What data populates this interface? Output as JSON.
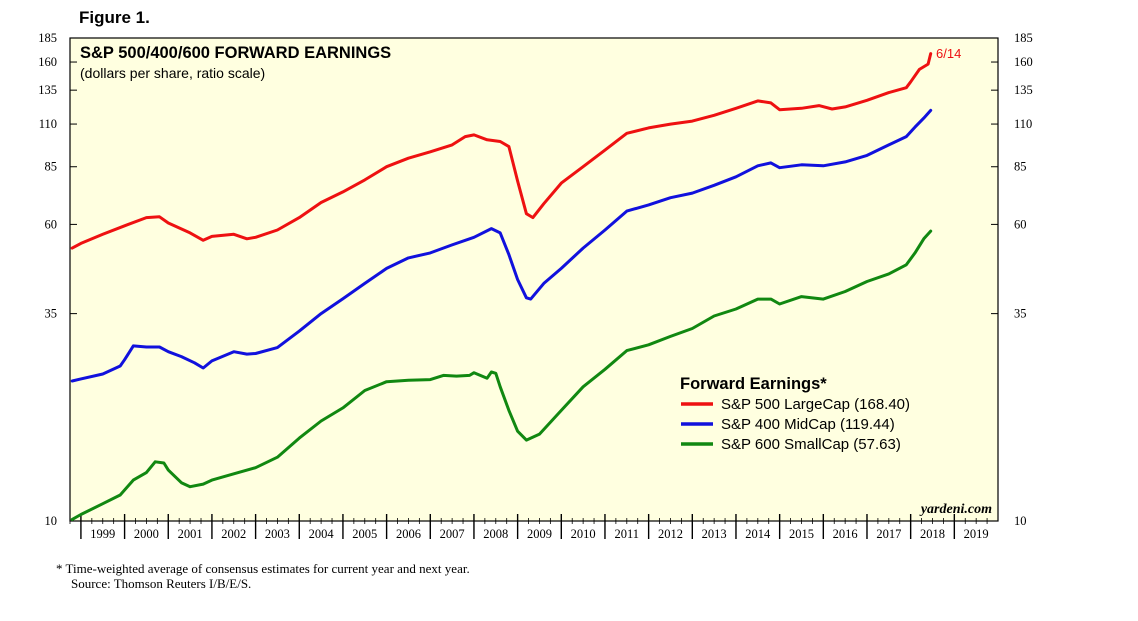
{
  "figure_label": "Figure 1.",
  "chart_data": {
    "type": "line",
    "title": "S&P 500/400/600 FORWARD EARNINGS",
    "subtitle": "(dollars per share, ratio scale)",
    "y_scale": "log",
    "ylim": [
      10,
      185
    ],
    "yticks": [
      10,
      35,
      60,
      85,
      110,
      135,
      160,
      185
    ],
    "xlim": [
      1998.75,
      2020.0
    ],
    "x_year_labels": [
      "1999",
      "2000",
      "2001",
      "2002",
      "2003",
      "2004",
      "2005",
      "2006",
      "2007",
      "2008",
      "2009",
      "2010",
      "2011",
      "2012",
      "2013",
      "2014",
      "2015",
      "2016",
      "2017",
      "2018",
      "2019"
    ],
    "grid": false,
    "legend": {
      "title": "Forward Earnings*",
      "placement": "center-right",
      "entries": [
        "S&P 500 LargeCap (168.40)",
        "S&P 400 MidCap (119.44)",
        "S&P 600 SmallCap (57.63)"
      ]
    },
    "end_annotation": "6/14",
    "watermark": "yardeni.com",
    "series": [
      {
        "name": "S&P 500 LargeCap",
        "color": "#ee1111",
        "points": [
          [
            1998.8,
            52
          ],
          [
            1999.0,
            53.5
          ],
          [
            1999.5,
            56.5
          ],
          [
            2000.0,
            59.5
          ],
          [
            2000.5,
            62.5
          ],
          [
            2000.8,
            62.8
          ],
          [
            2001.0,
            60.5
          ],
          [
            2001.5,
            57
          ],
          [
            2001.8,
            54.5
          ],
          [
            2002.0,
            55.8
          ],
          [
            2002.5,
            56.5
          ],
          [
            2002.8,
            55
          ],
          [
            2003.0,
            55.5
          ],
          [
            2003.5,
            58
          ],
          [
            2004.0,
            62.5
          ],
          [
            2004.5,
            68.5
          ],
          [
            2005.0,
            73
          ],
          [
            2005.5,
            78.5
          ],
          [
            2006.0,
            85
          ],
          [
            2006.5,
            89.5
          ],
          [
            2007.0,
            93
          ],
          [
            2007.5,
            97
          ],
          [
            2007.8,
            102
          ],
          [
            2008.0,
            103
          ],
          [
            2008.3,
            100
          ],
          [
            2008.6,
            99
          ],
          [
            2008.8,
            96
          ],
          [
            2009.0,
            78
          ],
          [
            2009.2,
            64
          ],
          [
            2009.35,
            62.5
          ],
          [
            2009.6,
            68
          ],
          [
            2010.0,
            77
          ],
          [
            2010.5,
            85
          ],
          [
            2011.0,
            94
          ],
          [
            2011.5,
            104
          ],
          [
            2012.0,
            107.5
          ],
          [
            2012.5,
            110
          ],
          [
            2013.0,
            112
          ],
          [
            2013.5,
            116
          ],
          [
            2014.0,
            121
          ],
          [
            2014.5,
            126.5
          ],
          [
            2014.8,
            125
          ],
          [
            2015.0,
            120
          ],
          [
            2015.5,
            121
          ],
          [
            2015.9,
            123
          ],
          [
            2016.2,
            120.5
          ],
          [
            2016.5,
            122
          ],
          [
            2017.0,
            127
          ],
          [
            2017.5,
            133
          ],
          [
            2017.9,
            137
          ],
          [
            2018.0,
            142
          ],
          [
            2018.2,
            153
          ],
          [
            2018.4,
            158
          ],
          [
            2018.46,
            168.4
          ]
        ]
      },
      {
        "name": "S&P 400 MidCap",
        "color": "#1111dd",
        "points": [
          [
            1998.8,
            23.3
          ],
          [
            1999.0,
            23.6
          ],
          [
            1999.5,
            24.3
          ],
          [
            1999.9,
            25.5
          ],
          [
            2000.0,
            26.5
          ],
          [
            2000.2,
            28.8
          ],
          [
            2000.5,
            28.6
          ],
          [
            2000.8,
            28.6
          ],
          [
            2001.0,
            27.8
          ],
          [
            2001.3,
            27
          ],
          [
            2001.6,
            26
          ],
          [
            2001.8,
            25.2
          ],
          [
            2002.0,
            26.3
          ],
          [
            2002.5,
            27.8
          ],
          [
            2002.8,
            27.4
          ],
          [
            2003.0,
            27.5
          ],
          [
            2003.5,
            28.5
          ],
          [
            2004.0,
            31.5
          ],
          [
            2004.5,
            35
          ],
          [
            2005.0,
            38.3
          ],
          [
            2005.5,
            42
          ],
          [
            2006.0,
            46
          ],
          [
            2006.5,
            49
          ],
          [
            2007.0,
            50.5
          ],
          [
            2007.5,
            53
          ],
          [
            2008.0,
            55.5
          ],
          [
            2008.4,
            58.5
          ],
          [
            2008.6,
            57
          ],
          [
            2008.8,
            50
          ],
          [
            2009.0,
            43
          ],
          [
            2009.2,
            38.5
          ],
          [
            2009.3,
            38.2
          ],
          [
            2009.6,
            42
          ],
          [
            2010.0,
            46
          ],
          [
            2010.5,
            52
          ],
          [
            2011.0,
            58
          ],
          [
            2011.5,
            65
          ],
          [
            2012.0,
            67.5
          ],
          [
            2012.5,
            70.5
          ],
          [
            2013.0,
            72.5
          ],
          [
            2013.5,
            76
          ],
          [
            2014.0,
            80
          ],
          [
            2014.5,
            85.5
          ],
          [
            2014.8,
            87
          ],
          [
            2015.0,
            84.5
          ],
          [
            2015.5,
            86
          ],
          [
            2016.0,
            85.5
          ],
          [
            2016.5,
            87.5
          ],
          [
            2017.0,
            91
          ],
          [
            2017.5,
            97
          ],
          [
            2017.9,
            102
          ],
          [
            2018.1,
            108
          ],
          [
            2018.3,
            114
          ],
          [
            2018.46,
            119.44
          ]
        ]
      },
      {
        "name": "S&P 600 SmallCap",
        "color": "#118811",
        "points": [
          [
            1998.8,
            10.1
          ],
          [
            1999.0,
            10.4
          ],
          [
            1999.5,
            11.1
          ],
          [
            1999.9,
            11.7
          ],
          [
            2000.2,
            12.8
          ],
          [
            2000.5,
            13.4
          ],
          [
            2000.7,
            14.3
          ],
          [
            2000.9,
            14.2
          ],
          [
            2001.0,
            13.6
          ],
          [
            2001.3,
            12.6
          ],
          [
            2001.5,
            12.3
          ],
          [
            2001.8,
            12.5
          ],
          [
            2002.0,
            12.8
          ],
          [
            2002.5,
            13.3
          ],
          [
            2003.0,
            13.8
          ],
          [
            2003.5,
            14.7
          ],
          [
            2004.0,
            16.5
          ],
          [
            2004.5,
            18.3
          ],
          [
            2005.0,
            19.8
          ],
          [
            2005.5,
            22
          ],
          [
            2006.0,
            23.2
          ],
          [
            2006.5,
            23.4
          ],
          [
            2007.0,
            23.5
          ],
          [
            2007.3,
            24.1
          ],
          [
            2007.6,
            24
          ],
          [
            2007.9,
            24.1
          ],
          [
            2008.0,
            24.5
          ],
          [
            2008.3,
            23.7
          ],
          [
            2008.4,
            24.6
          ],
          [
            2008.5,
            24.4
          ],
          [
            2008.6,
            22.5
          ],
          [
            2008.8,
            19.5
          ],
          [
            2009.0,
            17.2
          ],
          [
            2009.2,
            16.3
          ],
          [
            2009.5,
            16.9
          ],
          [
            2010.0,
            19.5
          ],
          [
            2010.5,
            22.5
          ],
          [
            2011.0,
            25
          ],
          [
            2011.5,
            28
          ],
          [
            2012.0,
            29
          ],
          [
            2012.5,
            30.5
          ],
          [
            2013.0,
            32
          ],
          [
            2013.5,
            34.5
          ],
          [
            2014.0,
            36
          ],
          [
            2014.5,
            38.2
          ],
          [
            2014.8,
            38.2
          ],
          [
            2015.0,
            37.1
          ],
          [
            2015.5,
            38.8
          ],
          [
            2016.0,
            38.2
          ],
          [
            2016.5,
            40
          ],
          [
            2017.0,
            42.5
          ],
          [
            2017.5,
            44.5
          ],
          [
            2017.9,
            47
          ],
          [
            2018.1,
            50.5
          ],
          [
            2018.3,
            55
          ],
          [
            2018.46,
            57.63
          ]
        ]
      }
    ]
  },
  "footnote": {
    "line1": "*  Time-weighted average of consensus estimates for current year and next year.",
    "line2": "Source: Thomson Reuters I/B/E/S."
  }
}
